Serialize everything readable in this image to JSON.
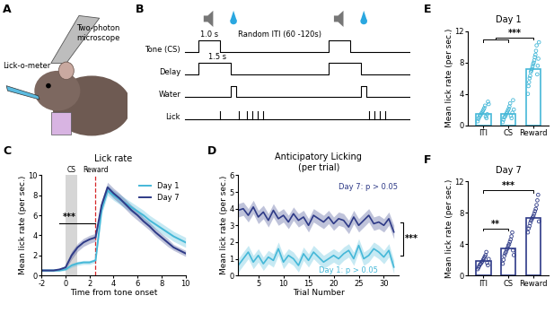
{
  "figure": {
    "panel_labels": [
      "A",
      "B",
      "C",
      "D",
      "E",
      "F"
    ],
    "panel_A": {
      "labels": [
        "Two-photon\nmicroscope",
        "Lick-o-meter"
      ]
    },
    "panel_B": {
      "rows": [
        "Tone (CS)",
        "Delay",
        "Water",
        "Lick"
      ],
      "labels": [
        "1.0 s",
        "1.5 s",
        "Random ITI (60 -120s)"
      ]
    }
  },
  "chart_data": [
    {
      "type": "line",
      "title": "Lick rate",
      "x_label": "Time from tone onset",
      "y_label": "Mean lick rate (per sec.)",
      "x": [
        -2,
        -1.5,
        -1,
        -0.5,
        0,
        0.5,
        1,
        1.5,
        2,
        2.5,
        3,
        3.5,
        4,
        4.5,
        5,
        5.5,
        6,
        6.5,
        7,
        7.5,
        8,
        8.5,
        9,
        9.5,
        10
      ],
      "series": [
        {
          "name": "Day 1",
          "color": "#45b8d8",
          "values": [
            0.5,
            0.5,
            0.5,
            0.5,
            0.6,
            1.0,
            1.2,
            1.3,
            1.3,
            1.5,
            6.5,
            8.5,
            8.0,
            7.6,
            7.2,
            6.8,
            6.4,
            6.0,
            5.5,
            5.1,
            4.7,
            4.3,
            3.9,
            3.6,
            3.3
          ],
          "sem": [
            0.1,
            0.1,
            0.1,
            0.1,
            0.1,
            0.2,
            0.2,
            0.2,
            0.2,
            0.2,
            0.4,
            0.5,
            0.5,
            0.5,
            0.5,
            0.5,
            0.5,
            0.5,
            0.5,
            0.5,
            0.5,
            0.5,
            0.5,
            0.5,
            0.5
          ]
        },
        {
          "name": "Day 7",
          "color": "#2e3a87",
          "values": [
            0.5,
            0.5,
            0.5,
            0.6,
            0.8,
            2.0,
            2.8,
            3.3,
            3.6,
            3.8,
            7.0,
            8.8,
            8.2,
            7.7,
            7.1,
            6.5,
            6.0,
            5.4,
            4.9,
            4.3,
            3.8,
            3.3,
            2.8,
            2.5,
            2.2
          ],
          "sem": [
            0.1,
            0.1,
            0.1,
            0.1,
            0.2,
            0.4,
            0.4,
            0.4,
            0.4,
            0.4,
            0.5,
            0.5,
            0.5,
            0.5,
            0.5,
            0.5,
            0.5,
            0.4,
            0.4,
            0.4,
            0.4,
            0.4,
            0.3,
            0.3,
            0.3
          ]
        }
      ],
      "cs_span": [
        0,
        1
      ],
      "reward_time": 2.5,
      "annotations": [
        "***",
        "CS",
        "Reward"
      ],
      "xlim": [
        -2,
        10
      ],
      "xticks": [
        -2,
        0,
        2,
        4,
        6,
        8,
        10
      ],
      "ylim": [
        0,
        10
      ],
      "yticks": [
        0,
        2,
        4,
        6,
        8,
        10
      ],
      "legend": "upper right"
    },
    {
      "type": "line",
      "title": "Anticipatory Licking\n(per trial)",
      "x_label": "Trial Number",
      "y_label": "Mean lick rate (per sec.)",
      "x": [
        1,
        2,
        3,
        4,
        5,
        6,
        7,
        8,
        9,
        10,
        11,
        12,
        13,
        14,
        15,
        16,
        17,
        18,
        19,
        20,
        21,
        22,
        23,
        24,
        25,
        26,
        27,
        28,
        29,
        30,
        31,
        32
      ],
      "series": [
        {
          "color": "#2e3a87",
          "values": [
            3.9,
            4.0,
            3.6,
            4.1,
            3.5,
            3.8,
            3.3,
            3.9,
            3.4,
            3.6,
            3.2,
            3.7,
            3.3,
            3.5,
            3.0,
            3.6,
            3.4,
            3.2,
            3.5,
            3.1,
            3.4,
            3.3,
            2.9,
            3.5,
            3.0,
            3.3,
            3.6,
            3.1,
            3.2,
            3.0,
            3.4,
            2.6
          ],
          "sem": [
            0.4,
            0.4,
            0.4,
            0.4,
            0.4,
            0.4,
            0.4,
            0.4,
            0.4,
            0.4,
            0.4,
            0.4,
            0.4,
            0.4,
            0.4,
            0.4,
            0.4,
            0.4,
            0.4,
            0.4,
            0.4,
            0.4,
            0.4,
            0.4,
            0.4,
            0.4,
            0.4,
            0.4,
            0.4,
            0.4,
            0.4,
            0.4
          ]
        },
        {
          "color": "#45b8d8",
          "values": [
            0.6,
            1.0,
            1.4,
            0.8,
            1.2,
            0.7,
            1.1,
            0.9,
            1.6,
            0.8,
            1.2,
            1.0,
            0.6,
            1.3,
            0.9,
            1.4,
            1.1,
            0.8,
            1.0,
            1.2,
            1.0,
            1.3,
            1.5,
            1.0,
            1.8,
            1.0,
            1.2,
            1.6,
            1.4,
            1.1,
            1.5,
            0.5
          ],
          "sem": [
            0.4,
            0.4,
            0.4,
            0.4,
            0.4,
            0.4,
            0.4,
            0.4,
            0.4,
            0.4,
            0.4,
            0.4,
            0.4,
            0.4,
            0.4,
            0.4,
            0.4,
            0.4,
            0.4,
            0.4,
            0.4,
            0.4,
            0.4,
            0.4,
            0.4,
            0.4,
            0.4,
            0.4,
            0.4,
            0.4,
            0.4,
            0.4
          ]
        }
      ],
      "annotations": [
        "Day 7: p > 0.05",
        "Day 1: p > 0.05",
        "***"
      ],
      "xlim": [
        1,
        33
      ],
      "xticks": [
        5,
        10,
        15,
        20,
        25,
        30
      ],
      "ylim": [
        0,
        6
      ],
      "yticks": [
        0,
        1,
        2,
        3,
        4,
        5,
        6
      ]
    },
    {
      "type": "bar",
      "title": "Day 1",
      "y_label": "Mean lick rate (per sec.)",
      "categories": [
        "ITI",
        "CS",
        "Reward"
      ],
      "values": [
        1.5,
        1.4,
        7.2
      ],
      "color": "#45b8d8",
      "points": [
        [
          0.5,
          0.8,
          1.0,
          1.2,
          1.3,
          1.5,
          1.6,
          1.8,
          2.0,
          2.2,
          2.5,
          1.1,
          0.9,
          1.4,
          3.0,
          2.7
        ],
        [
          0.4,
          0.7,
          1.0,
          1.1,
          1.3,
          1.5,
          1.7,
          1.9,
          2.1,
          2.4,
          2.8,
          1.2,
          0.9,
          1.6,
          3.2,
          2.0
        ],
        [
          4.0,
          5.0,
          5.5,
          6.0,
          6.3,
          6.8,
          7.0,
          7.2,
          7.5,
          7.8,
          8.0,
          8.3,
          8.7,
          9.0,
          9.5,
          10.2,
          6.5,
          7.6,
          8.5,
          10.6
        ]
      ],
      "annotations": [
        "***"
      ],
      "ylim": [
        0,
        12
      ],
      "yticks": [
        0,
        4,
        8,
        12
      ]
    },
    {
      "type": "bar",
      "title": "Day 7",
      "y_label": "Mean lick rate (per sec.)",
      "categories": [
        "ITI",
        "CS",
        "Reward"
      ],
      "values": [
        1.8,
        3.5,
        7.3
      ],
      "color": "#2e3a87",
      "points": [
        [
          0.8,
          1.0,
          1.2,
          1.4,
          1.5,
          1.7,
          1.8,
          2.0,
          2.2,
          2.4,
          2.6,
          3.0,
          1.6,
          1.3,
          2.1
        ],
        [
          1.5,
          2.0,
          2.5,
          2.8,
          3.0,
          3.3,
          3.5,
          3.8,
          4.0,
          4.3,
          4.6,
          5.0,
          5.5,
          3.2,
          2.6
        ],
        [
          5.5,
          6.0,
          6.3,
          6.7,
          7.0,
          7.2,
          7.4,
          7.6,
          7.9,
          8.2,
          8.5,
          9.0,
          9.6,
          10.3,
          6.9
        ]
      ],
      "annotations": [
        "**",
        "***"
      ],
      "ylim": [
        0,
        12
      ],
      "yticks": [
        0,
        4,
        8,
        12
      ]
    }
  ]
}
